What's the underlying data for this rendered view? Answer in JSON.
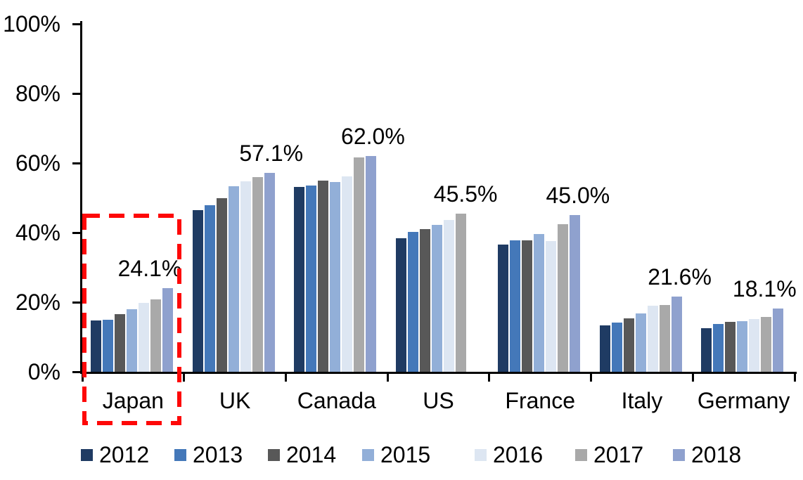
{
  "chart_data": {
    "type": "bar",
    "title": "",
    "categories": [
      "Japan",
      "UK",
      "Canada",
      "US",
      "France",
      "Italy",
      "Germany"
    ],
    "series": [
      {
        "name": "2012",
        "color": "#1F3B63",
        "values": [
          14.7,
          46.5,
          53.1,
          38.4,
          36.6,
          13.3,
          12.5
        ]
      },
      {
        "name": "2013",
        "color": "#4478B9",
        "values": [
          15.0,
          47.9,
          53.6,
          40.2,
          37.8,
          14.1,
          13.7
        ]
      },
      {
        "name": "2014",
        "color": "#585858",
        "values": [
          16.6,
          50.0,
          54.9,
          41.0,
          37.8,
          15.3,
          14.3
        ]
      },
      {
        "name": "2015",
        "color": "#92AFD8",
        "values": [
          18.0,
          53.4,
          54.6,
          42.3,
          39.5,
          16.7,
          14.6
        ]
      },
      {
        "name": "2016",
        "color": "#DDE6F2",
        "values": [
          19.7,
          54.8,
          56.1,
          43.6,
          37.5,
          18.9,
          15.2
        ]
      },
      {
        "name": "2017",
        "color": "#A9A9A9",
        "values": [
          20.8,
          55.9,
          61.7,
          45.5,
          42.4,
          19.1,
          15.7
        ]
      },
      {
        "name": "2018",
        "color": "#8FA1CE",
        "values": [
          24.1,
          57.1,
          62.0,
          null,
          45.0,
          21.6,
          18.1
        ]
      }
    ],
    "value_labels": [
      "24.1%",
      "57.1%",
      "62.0%",
      "45.5%",
      "45.0%",
      "21.6%",
      "18.1%"
    ],
    "y_ticks": [
      "0%",
      "20%",
      "40%",
      "60%",
      "80%",
      "100%"
    ],
    "ylim": [
      0,
      100
    ],
    "grid": false,
    "legend_position": "bottom",
    "legend_entries": [
      "2012",
      "2013",
      "2014",
      "2015",
      "2016",
      "2017",
      "2018"
    ],
    "highlight": {
      "category": "Japan",
      "style": "red-dashed-box",
      "color": "#FE0808"
    },
    "axis_color": "#000000"
  }
}
